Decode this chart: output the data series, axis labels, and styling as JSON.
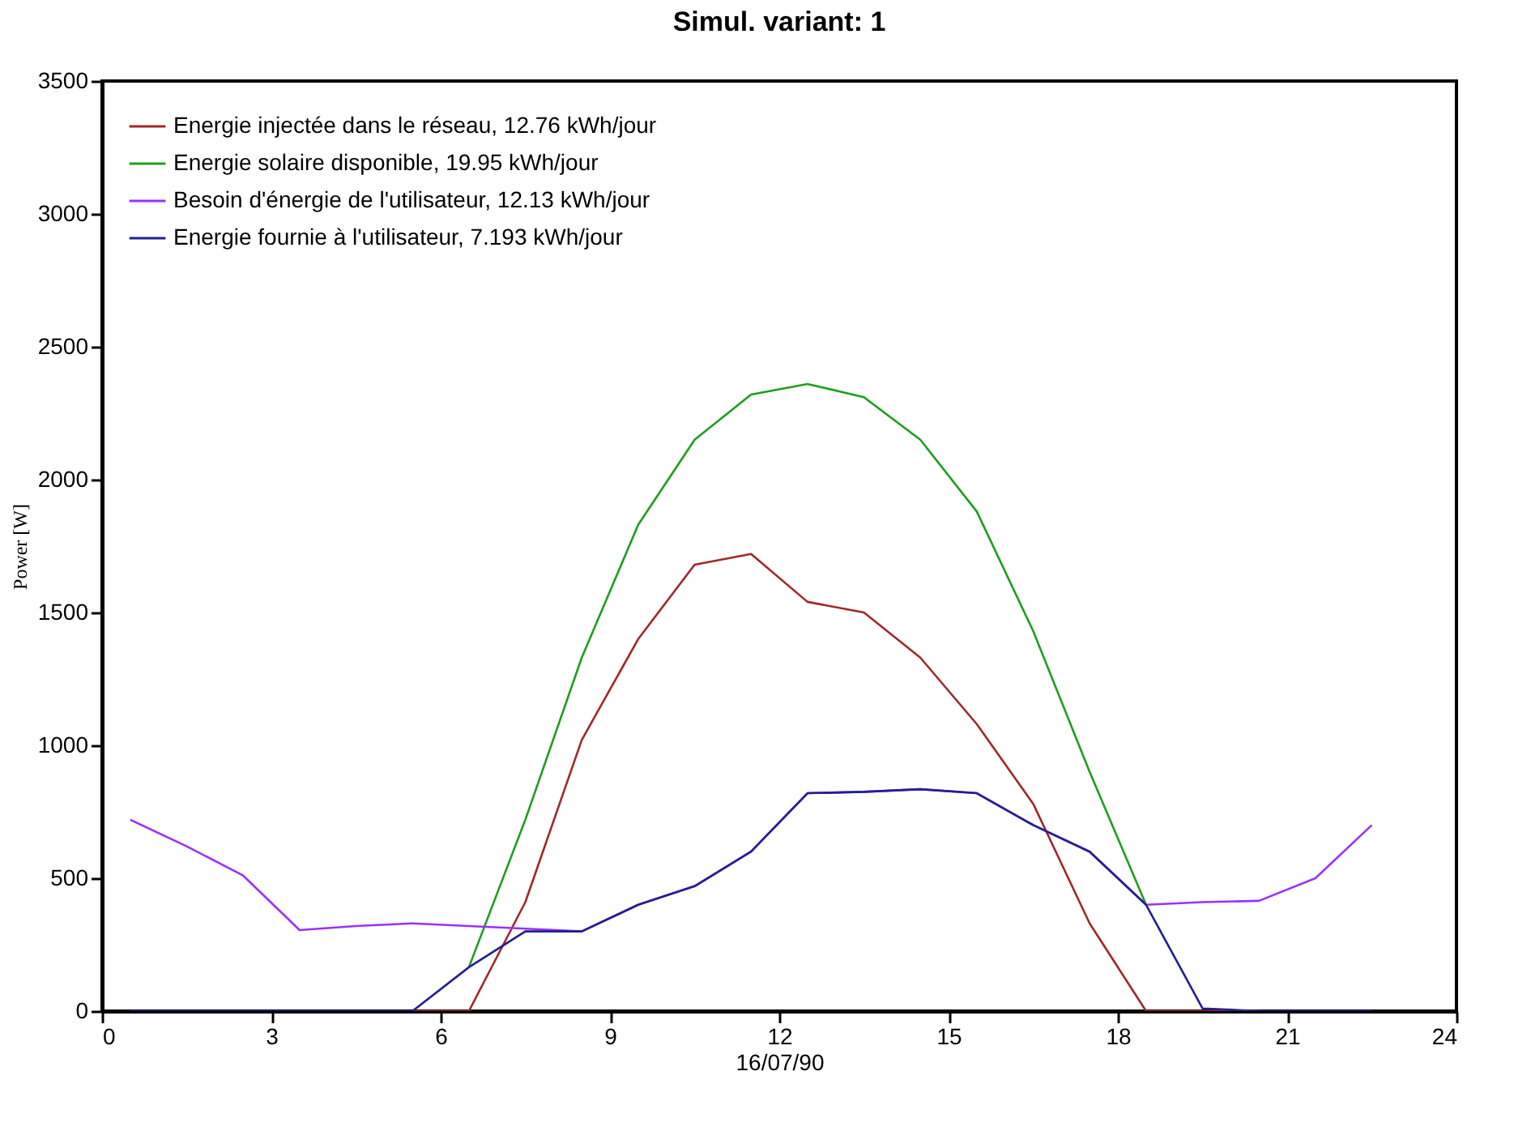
{
  "chart_data": {
    "type": "line",
    "title": "Simul. variant: 1",
    "xlabel": "16/07/90",
    "ylabel": "Power  [W]",
    "x": [
      0.5,
      1.5,
      2.5,
      3.5,
      4.5,
      5.5,
      6.5,
      7.5,
      8.5,
      9.5,
      10.5,
      11.5,
      12.5,
      13.5,
      14.5,
      15.5,
      16.5,
      17.5,
      18.5,
      19.5,
      20.5,
      21.5,
      22.5
    ],
    "series": [
      {
        "name": "Energie injectée dans le réseau,  12.76 kWh/jour",
        "color": "#a02828",
        "values": [
          null,
          null,
          null,
          null,
          null,
          0,
          0,
          410,
          1020,
          1400,
          1680,
          1720,
          1540,
          1500,
          1330,
          1080,
          780,
          330,
          0,
          0,
          0,
          null,
          null
        ]
      },
      {
        "name": "Energie solaire disponible,  19.95 kWh/jour",
        "color": "#1e9e1e",
        "values": [
          null,
          null,
          null,
          null,
          null,
          null,
          165,
          720,
          1330,
          1830,
          2150,
          2320,
          2360,
          2310,
          2150,
          1880,
          1430,
          900,
          400,
          null,
          null,
          null,
          null
        ]
      },
      {
        "name": "Besoin d'énergie de l'utilisateur,  12.13 kWh/jour",
        "color": "#9b30ff",
        "values": [
          720,
          620,
          510,
          305,
          320,
          330,
          320,
          310,
          300,
          400,
          470,
          600,
          820,
          825,
          835,
          820,
          700,
          600,
          400,
          410,
          415,
          500,
          700
        ]
      },
      {
        "name": "Energie fournie à l'utilisateur,  7.193 kWh/jour",
        "color": "#20208f",
        "values": [
          0,
          0,
          0,
          0,
          0,
          0,
          165,
          300,
          300,
          400,
          470,
          600,
          820,
          825,
          835,
          820,
          700,
          600,
          400,
          10,
          0,
          0,
          0
        ]
      }
    ],
    "xlim": [
      0,
      24
    ],
    "xticks": [
      0,
      3,
      6,
      9,
      12,
      15,
      18,
      21,
      24
    ],
    "ylim": [
      0,
      3500
    ],
    "yticks": [
      0,
      500,
      1000,
      1500,
      2000,
      2500,
      3000,
      3500
    ],
    "legend": "top left",
    "grid": false,
    "marker": "none",
    "line_style": "solid"
  }
}
